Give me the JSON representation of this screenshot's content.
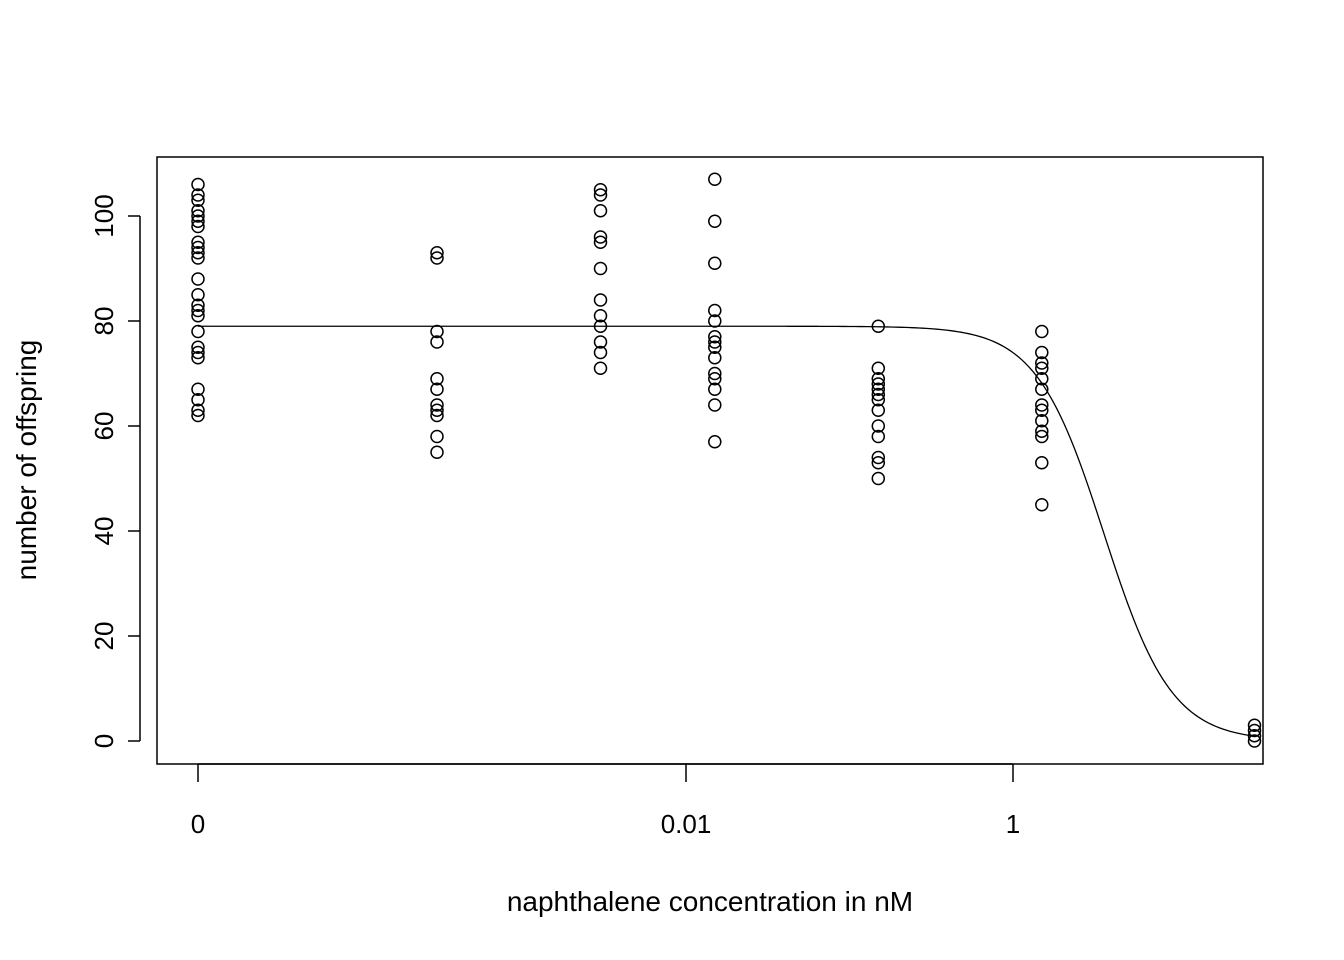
{
  "chart_data": {
    "type": "scatter",
    "title": "",
    "xlabel": "naphthalene concentration in nM",
    "ylabel": "number of offspring",
    "x_scale": "log",
    "x_ticks": [
      {
        "value": 0,
        "label": "0"
      },
      {
        "value": 0.01,
        "label": "0.01"
      },
      {
        "value": 1,
        "label": "1"
      }
    ],
    "y_ticks": [
      0,
      20,
      40,
      60,
      80,
      100
    ],
    "ylim": [
      -4,
      111
    ],
    "grid": false,
    "legend": "none",
    "groups": [
      {
        "x": 0,
        "y": [
          106,
          104,
          103,
          101,
          100,
          99,
          98,
          95,
          94,
          93,
          92,
          88,
          85,
          83,
          82,
          81,
          78,
          75,
          74,
          73,
          67,
          65,
          63,
          62
        ]
      },
      {
        "x": 0.0003,
        "y": [
          93,
          92,
          78,
          76,
          69,
          67,
          64,
          63,
          62,
          58,
          55
        ]
      },
      {
        "x": 0.003,
        "y": [
          105,
          104,
          101,
          96,
          95,
          90,
          84,
          81,
          79,
          76,
          74,
          71
        ]
      },
      {
        "x": 0.015,
        "y": [
          107,
          99,
          91,
          82,
          80,
          77,
          76,
          75,
          73,
          70,
          69,
          67,
          64,
          57
        ]
      },
      {
        "x": 0.15,
        "y": [
          79,
          71,
          69,
          68,
          67,
          66,
          65,
          63,
          60,
          58,
          54,
          53,
          50
        ]
      },
      {
        "x": 1.5,
        "y": [
          78,
          74,
          72,
          71,
          69,
          67,
          64,
          63,
          61,
          59,
          58,
          53,
          45
        ]
      },
      {
        "x": 30,
        "y": [
          3,
          2,
          1,
          0
        ]
      }
    ],
    "fit_curve": {
      "type": "log-logistic",
      "upper": 79,
      "lower": 0,
      "ec50": 3.6,
      "slope": 2.1
    }
  }
}
